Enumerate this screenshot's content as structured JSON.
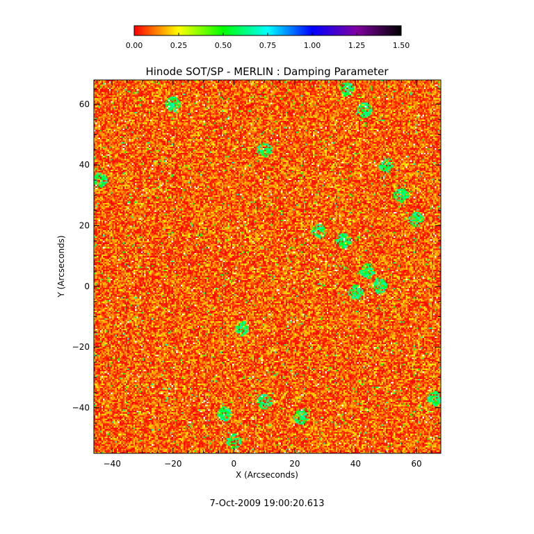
{
  "chart_data": {
    "type": "heatmap",
    "title": "Hinode SOT/SP - MERLIN : Damping Parameter",
    "xlabel": "X (Arcseconds)",
    "ylabel": "Y (Arcseconds)",
    "date_label": "7-Oct-2009 19:00:20.613",
    "xlim": [
      -46,
      68
    ],
    "ylim": [
      -55,
      68
    ],
    "x_ticks": [
      -40,
      -20,
      0,
      20,
      40,
      60
    ],
    "y_ticks": [
      -40,
      -20,
      0,
      20,
      40,
      60
    ],
    "colorbar": {
      "range": [
        0.0,
        1.5
      ],
      "ticks": [
        "0.00",
        "0.25",
        "0.50",
        "0.75",
        "1.00",
        "1.25",
        "1.50"
      ],
      "colors": [
        "#ff0000",
        "#ffff00",
        "#00ff00",
        "#00ffff",
        "#0000ff",
        "#8000a0",
        "#000000"
      ]
    },
    "field": {
      "background_range": [
        0.0,
        0.25
      ],
      "background_dominant": 0.1,
      "green_patches": [
        {
          "x": 37,
          "y": 65
        },
        {
          "x": 43,
          "y": 58
        },
        {
          "x": 44,
          "y": 5
        },
        {
          "x": 48,
          "y": 0
        },
        {
          "x": 40,
          "y": -2
        },
        {
          "x": 36,
          "y": 15
        },
        {
          "x": 28,
          "y": 18
        },
        {
          "x": 60,
          "y": 22
        },
        {
          "x": 55,
          "y": 30
        },
        {
          "x": -44,
          "y": 35
        },
        {
          "x": 3,
          "y": -14
        },
        {
          "x": 10,
          "y": -38
        },
        {
          "x": -3,
          "y": -42
        },
        {
          "x": 0,
          "y": -51
        },
        {
          "x": 22,
          "y": -43
        },
        {
          "x": 66,
          "y": -37
        },
        {
          "x": -20,
          "y": 60
        },
        {
          "x": 10,
          "y": 45
        },
        {
          "x": 50,
          "y": 40
        }
      ]
    }
  }
}
